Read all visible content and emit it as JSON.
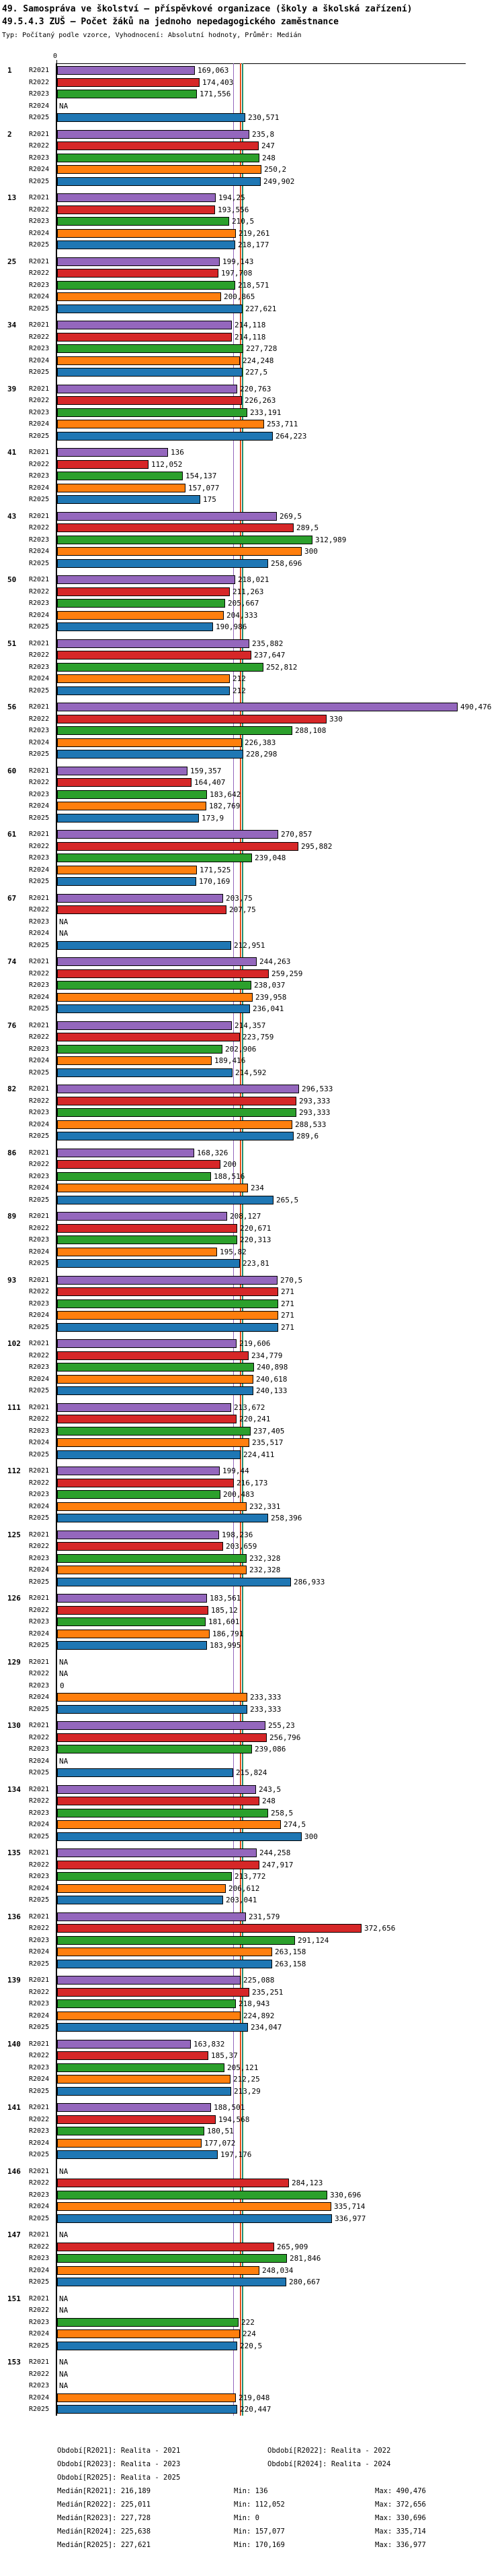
{
  "header": {
    "title_line1": "49. Samospráva ve školství – příspěvkové organizace (školy a školská zařízení)",
    "title_line2": "49.5.4.3 ZUŠ – Počet žáků na jednoho nepedagogického zaměstnance",
    "meta": "Typ: Počítaný podle vzorce, Vyhodnocení: Absolutní hodnoty, Průměr: Medián"
  },
  "axis": {
    "zero_label": "0"
  },
  "chart_data": {
    "type": "bar",
    "orientation": "horizontal",
    "value_note": "Czech decimal comma formatting, NA = missing",
    "series_labels": [
      "R2021",
      "R2022",
      "R2023",
      "R2024",
      "R2025"
    ],
    "series_colors": {
      "R2021": "#9467bd",
      "R2022": "#d62728",
      "R2023": "#2ca02c",
      "R2024": "#ff7f0e",
      "R2025": "#1f77b4"
    },
    "na_label": "NA",
    "xlim": [
      0,
      540
    ],
    "median_lines": {
      "R2021": "216,189",
      "R2022": "225,011",
      "R2023": "227,728",
      "R2024": "225,638",
      "R2025": "227,621"
    },
    "groups": [
      {
        "id": "1",
        "values": [
          "169,063",
          "174,403",
          "171,556",
          null,
          "230,571"
        ]
      },
      {
        "id": "2",
        "values": [
          "235,8",
          "247",
          "248",
          "250,2",
          "249,902"
        ]
      },
      {
        "id": "13",
        "values": [
          "194,25",
          "193,556",
          "210,5",
          "219,261",
          "218,177"
        ]
      },
      {
        "id": "25",
        "values": [
          "199,143",
          "197,708",
          "218,571",
          "200,865",
          "227,621"
        ]
      },
      {
        "id": "34",
        "values": [
          "214,118",
          "214,118",
          "227,728",
          "224,248",
          "227,5"
        ]
      },
      {
        "id": "39",
        "values": [
          "220,763",
          "226,263",
          "233,191",
          "253,711",
          "264,223"
        ]
      },
      {
        "id": "41",
        "values": [
          "136",
          "112,052",
          "154,137",
          "157,077",
          "175"
        ]
      },
      {
        "id": "43",
        "values": [
          "269,5",
          "289,5",
          "312,989",
          "300",
          "258,696"
        ]
      },
      {
        "id": "50",
        "values": [
          "218,021",
          "211,263",
          "205,667",
          "204,333",
          "190,986"
        ]
      },
      {
        "id": "51",
        "values": [
          "235,882",
          "237,647",
          "252,812",
          "212",
          "212"
        ]
      },
      {
        "id": "56",
        "values": [
          "490,476",
          "330",
          "288,108",
          "226,383",
          "228,298"
        ]
      },
      {
        "id": "60",
        "values": [
          "159,357",
          "164,407",
          "183,642",
          "182,769",
          "173,9"
        ]
      },
      {
        "id": "61",
        "values": [
          "270,857",
          "295,882",
          "239,048",
          "171,525",
          "170,169"
        ]
      },
      {
        "id": "67",
        "values": [
          "203,75",
          "207,75",
          null,
          null,
          "212,951"
        ]
      },
      {
        "id": "74",
        "values": [
          "244,263",
          "259,259",
          "238,037",
          "239,958",
          "236,041"
        ]
      },
      {
        "id": "76",
        "values": [
          "214,357",
          "223,759",
          "202,906",
          "189,416",
          "214,592"
        ]
      },
      {
        "id": "82",
        "values": [
          "296,533",
          "293,333",
          "293,333",
          "288,533",
          "289,6"
        ]
      },
      {
        "id": "86",
        "values": [
          "168,326",
          "200",
          "188,516",
          "234",
          "265,5"
        ]
      },
      {
        "id": "89",
        "values": [
          "208,127",
          "220,671",
          "220,313",
          "195,82",
          "223,81"
        ]
      },
      {
        "id": "93",
        "values": [
          "270,5",
          "271",
          "271",
          "271",
          "271"
        ]
      },
      {
        "id": "102",
        "values": [
          "219,606",
          "234,779",
          "240,898",
          "240,618",
          "240,133"
        ]
      },
      {
        "id": "111",
        "values": [
          "213,672",
          "220,241",
          "237,405",
          "235,517",
          "224,411"
        ]
      },
      {
        "id": "112",
        "values": [
          "199,44",
          "216,173",
          "200,483",
          "232,331",
          "258,396"
        ]
      },
      {
        "id": "125",
        "values": [
          "198,236",
          "203,659",
          "232,328",
          "232,328",
          "286,933"
        ]
      },
      {
        "id": "126",
        "values": [
          "183,561",
          "185,12",
          "181,601",
          "186,791",
          "183,995"
        ]
      },
      {
        "id": "129",
        "values": [
          null,
          null,
          "0",
          "233,333",
          "233,333"
        ]
      },
      {
        "id": "130",
        "values": [
          "255,23",
          "256,796",
          "239,086",
          null,
          "215,824"
        ]
      },
      {
        "id": "134",
        "values": [
          "243,5",
          "248",
          "258,5",
          "274,5",
          "300"
        ]
      },
      {
        "id": "135",
        "values": [
          "244,258",
          "247,917",
          "213,772",
          "206,612",
          "203,041"
        ]
      },
      {
        "id": "136",
        "values": [
          "231,579",
          "372,656",
          "291,124",
          "263,158",
          "263,158"
        ]
      },
      {
        "id": "139",
        "values": [
          "225,088",
          "235,251",
          "218,943",
          "224,892",
          "234,047"
        ]
      },
      {
        "id": "140",
        "values": [
          "163,832",
          "185,37",
          "205,121",
          "212,25",
          "213,29"
        ]
      },
      {
        "id": "141",
        "values": [
          "188,501",
          "194,568",
          "180,51",
          "177,072",
          "197,176"
        ]
      },
      {
        "id": "146",
        "values": [
          null,
          "284,123",
          "330,696",
          "335,714",
          "336,977"
        ]
      },
      {
        "id": "147",
        "values": [
          null,
          "265,909",
          "281,846",
          "248,034",
          "280,667"
        ]
      },
      {
        "id": "151",
        "values": [
          null,
          null,
          "222",
          "224",
          "220,5"
        ]
      },
      {
        "id": "153",
        "values": [
          null,
          null,
          null,
          "219,048",
          "220,447"
        ]
      }
    ]
  },
  "footer": {
    "periods": [
      [
        "Období[R2021]: Realita - 2021",
        "Období[R2022]: Realita - 2022"
      ],
      [
        "Období[R2023]: Realita - 2023",
        "Období[R2024]: Realita - 2024"
      ],
      [
        "Období[R2025]: Realita - 2025",
        ""
      ]
    ],
    "stats": [
      [
        "Medián[R2021]: 216,189",
        "Min: 136",
        "Max: 490,476"
      ],
      [
        "Medián[R2022]: 225,011",
        "Min: 112,052",
        "Max: 372,656"
      ],
      [
        "Medián[R2023]: 227,728",
        "Min: 0",
        "Max: 330,696"
      ],
      [
        "Medián[R2024]: 225,638",
        "Min: 157,077",
        "Max: 335,714"
      ],
      [
        "Medián[R2025]: 227,621",
        "Min: 170,169",
        "Max: 336,977"
      ]
    ]
  }
}
